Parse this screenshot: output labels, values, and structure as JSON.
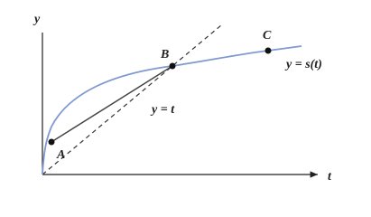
{
  "axes": {
    "y_label": "y",
    "x_label": "t"
  },
  "points": [
    {
      "label": "A"
    },
    {
      "label": "B"
    },
    {
      "label": "C"
    }
  ],
  "lines": {
    "diagonal": "y = t",
    "curve": "y = s(t)"
  }
}
